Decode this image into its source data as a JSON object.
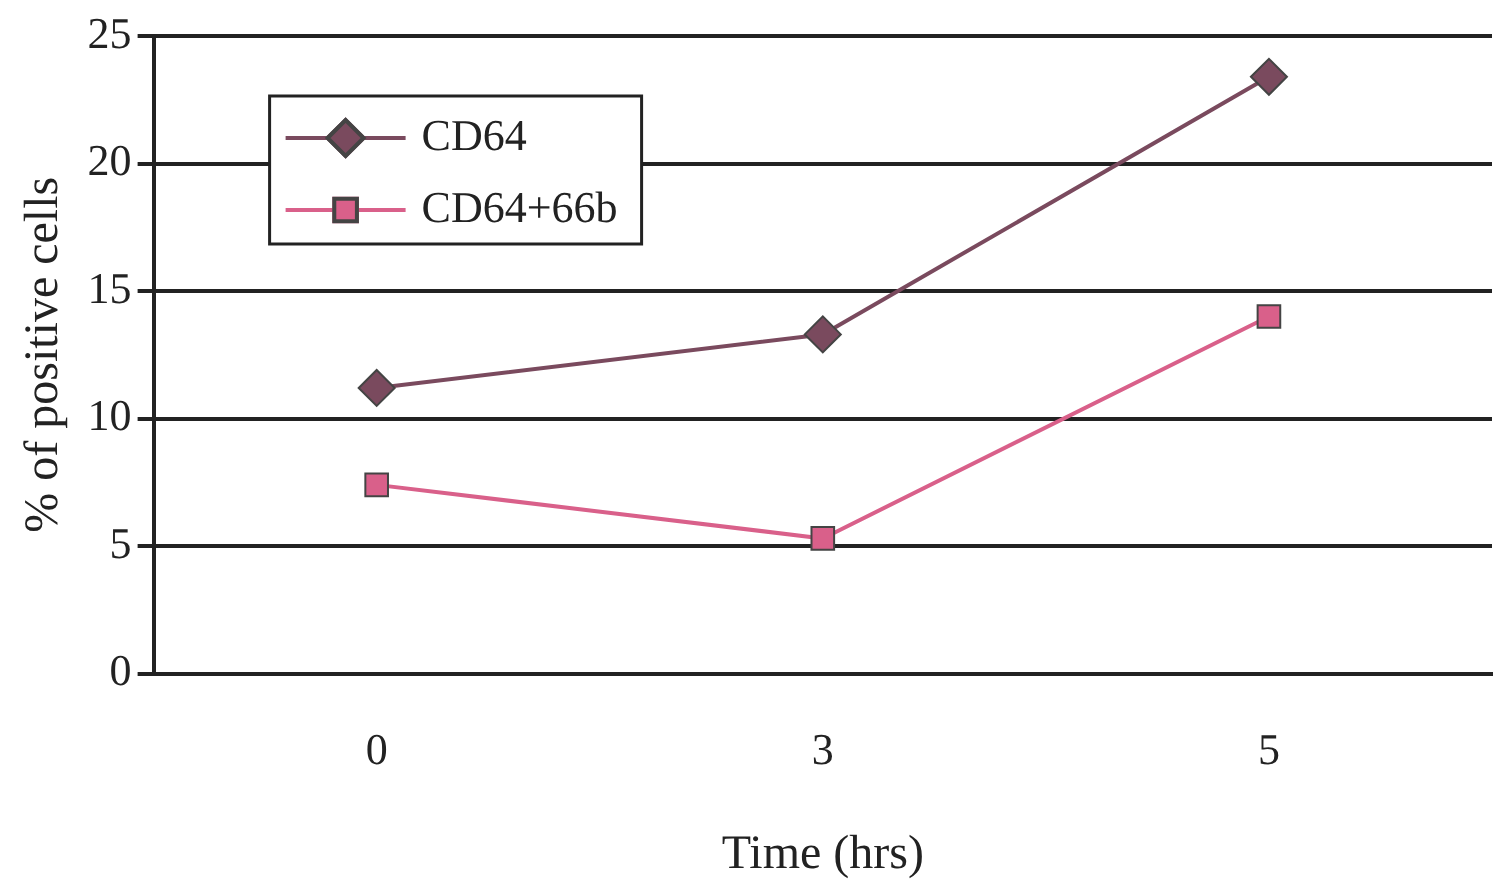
{
  "chart_data": {
    "type": "line",
    "xlabel": "Time (hrs)",
    "ylabel": "% of positive cells",
    "categories": [
      "0",
      "3",
      "5"
    ],
    "series": [
      {
        "name": "CD64",
        "color": "#7a4a5e",
        "marker": "diamond",
        "values": [
          11.2,
          13.3,
          23.4
        ]
      },
      {
        "name": "CD64+66b",
        "color": "#d9608a",
        "marker": "square",
        "values": [
          7.4,
          5.3,
          14.0
        ]
      }
    ],
    "ylim": [
      0,
      25
    ],
    "yticks": [
      0,
      5,
      10,
      15,
      20,
      25
    ],
    "grid": "y",
    "legend": "top left",
    "line_style": "solid"
  }
}
